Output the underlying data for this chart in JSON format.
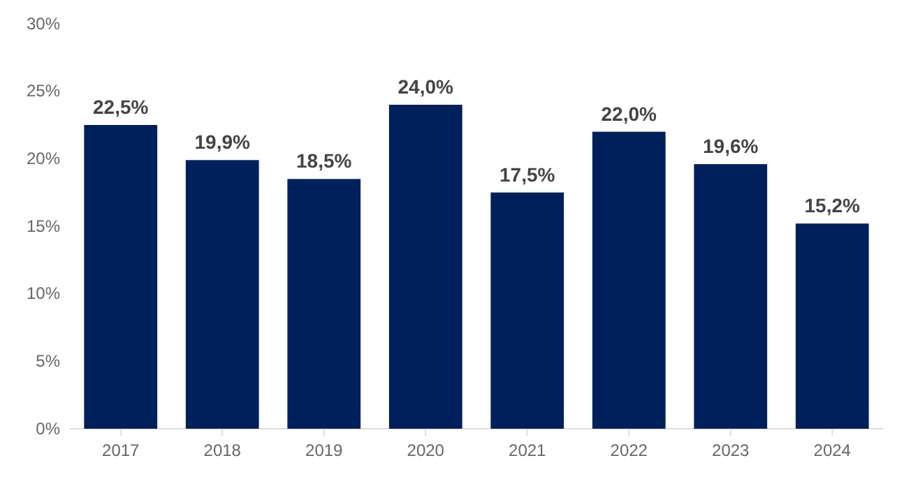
{
  "chart_data": {
    "type": "bar",
    "categories": [
      "2017",
      "2018",
      "2019",
      "2020",
      "2021",
      "2022",
      "2023",
      "2024"
    ],
    "values": [
      22.5,
      19.9,
      18.5,
      24.0,
      17.5,
      22.0,
      19.6,
      15.2
    ],
    "value_labels": [
      "22,5%",
      "19,9%",
      "18,5%",
      "24,0%",
      "17,5%",
      "22,0%",
      "19,6%",
      "15,2%"
    ],
    "color": "#00205b",
    "ylim": [
      0,
      30
    ],
    "yticks": [
      {
        "value": 0,
        "label": "0%"
      },
      {
        "value": 5,
        "label": "5%"
      },
      {
        "value": 10,
        "label": "10%"
      },
      {
        "value": 15,
        "label": "15%"
      },
      {
        "value": 20,
        "label": "20%"
      },
      {
        "value": 25,
        "label": "25%"
      },
      {
        "value": 30,
        "label": "30%"
      }
    ],
    "grid": false
  }
}
